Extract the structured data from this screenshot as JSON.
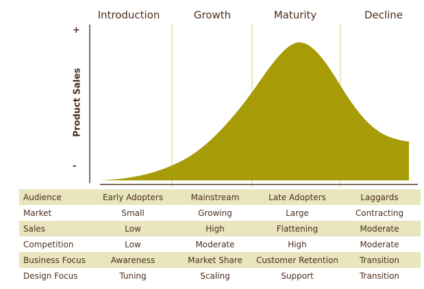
{
  "stages": [
    "Introduction",
    "Growth",
    "Maturity",
    "Decline"
  ],
  "y_axis": {
    "label": "Product Sales",
    "high": "+",
    "low": "-"
  },
  "colors": {
    "curve": "#a79b08",
    "axis": "#5a3a28",
    "divider": "#e0ddb0",
    "row_shade": "#e9e6bd",
    "text": "#4a2e1e"
  },
  "table": {
    "rows": [
      {
        "label": "Audience",
        "values": [
          "Early Adopters",
          "Mainstream",
          "Late Adopters",
          "Laggards"
        ]
      },
      {
        "label": "Market",
        "values": [
          "Small",
          "Growing",
          "Large",
          "Contracting"
        ]
      },
      {
        "label": "Sales",
        "values": [
          "Low",
          "High",
          "Flattening",
          "Moderate"
        ]
      },
      {
        "label": "Competition",
        "values": [
          "Low",
          "Moderate",
          "High",
          "Moderate"
        ]
      },
      {
        "label": "Business Focus",
        "values": [
          "Awareness",
          "Market Share",
          "Customer Retention",
          "Transition"
        ]
      },
      {
        "label": "Design Focus",
        "values": [
          "Tuning",
          "Scaling",
          "Support",
          "Transition"
        ]
      }
    ]
  }
}
